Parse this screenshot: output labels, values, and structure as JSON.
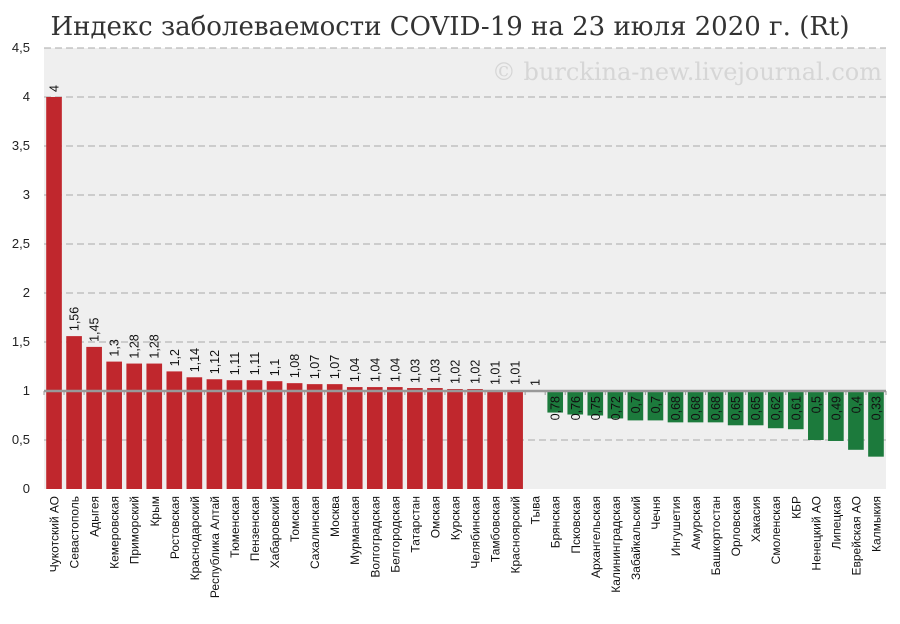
{
  "chart_data": {
    "type": "bar",
    "title": "Индекс заболеваемости COVID-19 на 23 июля 2020 г. (Rt)",
    "watermark": "© burckina-new.livejournal.com",
    "ylim": [
      0,
      4.5
    ],
    "yticks": [
      "0",
      "0,5",
      "1",
      "1,5",
      "2",
      "2,5",
      "3",
      "3,5",
      "4",
      "4,5"
    ],
    "baseline": 1,
    "grid": true,
    "colors": {
      "above": "#c0272d",
      "below": "#1c7a3c",
      "grid": "#aaaaaa",
      "plot_bg": "#efefef",
      "baseline": "#999999"
    },
    "categories": [
      "Чукотский АО",
      "Севастополь",
      "Адыгея",
      "Кемеровская",
      "Приморский",
      "Крым",
      "Ростовская",
      "Краснодарский",
      "Республика Алтай",
      "Тюменская",
      "Пензенская",
      "Хабаровский",
      "Томская",
      "Сахалинская",
      "Москва",
      "Мурманская",
      "Волгоградская",
      "Белгородская",
      "Татарстан",
      "Омская",
      "Курская",
      "Челябинская",
      "Тамбовская",
      "Красноярский",
      "Тыва",
      "Брянская",
      "Псковская",
      "Архангельская",
      "Калининградская",
      "Забайкальский",
      "Чечня",
      "Ингушетия",
      "Амурская",
      "Башкортостан",
      "Орловская",
      "Хакасия",
      "Смоленская",
      "КБР",
      "Ненецкий АО",
      "Липецкая",
      "Еврейская АО",
      "Калмыкия"
    ],
    "values": [
      4,
      1.56,
      1.45,
      1.3,
      1.28,
      1.28,
      1.2,
      1.14,
      1.12,
      1.11,
      1.11,
      1.1,
      1.08,
      1.07,
      1.07,
      1.04,
      1.04,
      1.04,
      1.03,
      1.03,
      1.02,
      1.02,
      1.01,
      1.01,
      1,
      0.78,
      0.76,
      0.75,
      0.72,
      0.7,
      0.7,
      0.68,
      0.68,
      0.68,
      0.65,
      0.65,
      0.62,
      0.61,
      0.5,
      0.49,
      0.4,
      0.33
    ],
    "value_labels": [
      "4",
      "1,56",
      "1,45",
      "1,3",
      "1,28",
      "1,28",
      "1,2",
      "1,14",
      "1,12",
      "1,11",
      "1,11",
      "1,1",
      "1,08",
      "1,07",
      "1,07",
      "1,04",
      "1,04",
      "1,04",
      "1,03",
      "1,03",
      "1,02",
      "1,02",
      "1,01",
      "1,01",
      "1",
      "0,78",
      "0,76",
      "0,75",
      "0,72",
      "0,7",
      "0,7",
      "0,68",
      "0,68",
      "0,68",
      "0,65",
      "0,65",
      "0,62",
      "0,61",
      "0,5",
      "0,49",
      "0,4",
      "0,33"
    ]
  }
}
